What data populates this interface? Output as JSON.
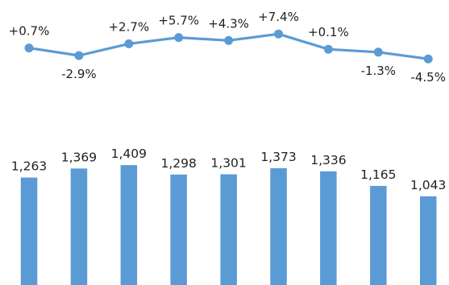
{
  "chart_data": [
    {
      "type": "line",
      "title": "",
      "xlabel": "",
      "ylabel": "",
      "grid": false,
      "unit": "%",
      "values": [
        0.7,
        -2.9,
        2.7,
        5.7,
        4.3,
        7.4,
        0.1,
        -1.3,
        -4.5
      ],
      "labels": [
        "+0.7%",
        "-2.9%",
        "+2.7%",
        "+5.7%",
        "+4.3%",
        "+7.4%",
        "+0.1%",
        "-1.3%",
        "-4.5%"
      ],
      "color": "#5b9bd5"
    },
    {
      "type": "bar",
      "title": "",
      "xlabel": "",
      "ylabel": "",
      "grid": false,
      "values": [
        1263,
        1369,
        1409,
        1298,
        1301,
        1373,
        1336,
        1165,
        1043
      ],
      "labels": [
        "1,263",
        "1,369",
        "1,409",
        "1,298",
        "1,301",
        "1,373",
        "1,336",
        "1,165",
        "1,043"
      ],
      "color": "#5b9bd5"
    }
  ]
}
